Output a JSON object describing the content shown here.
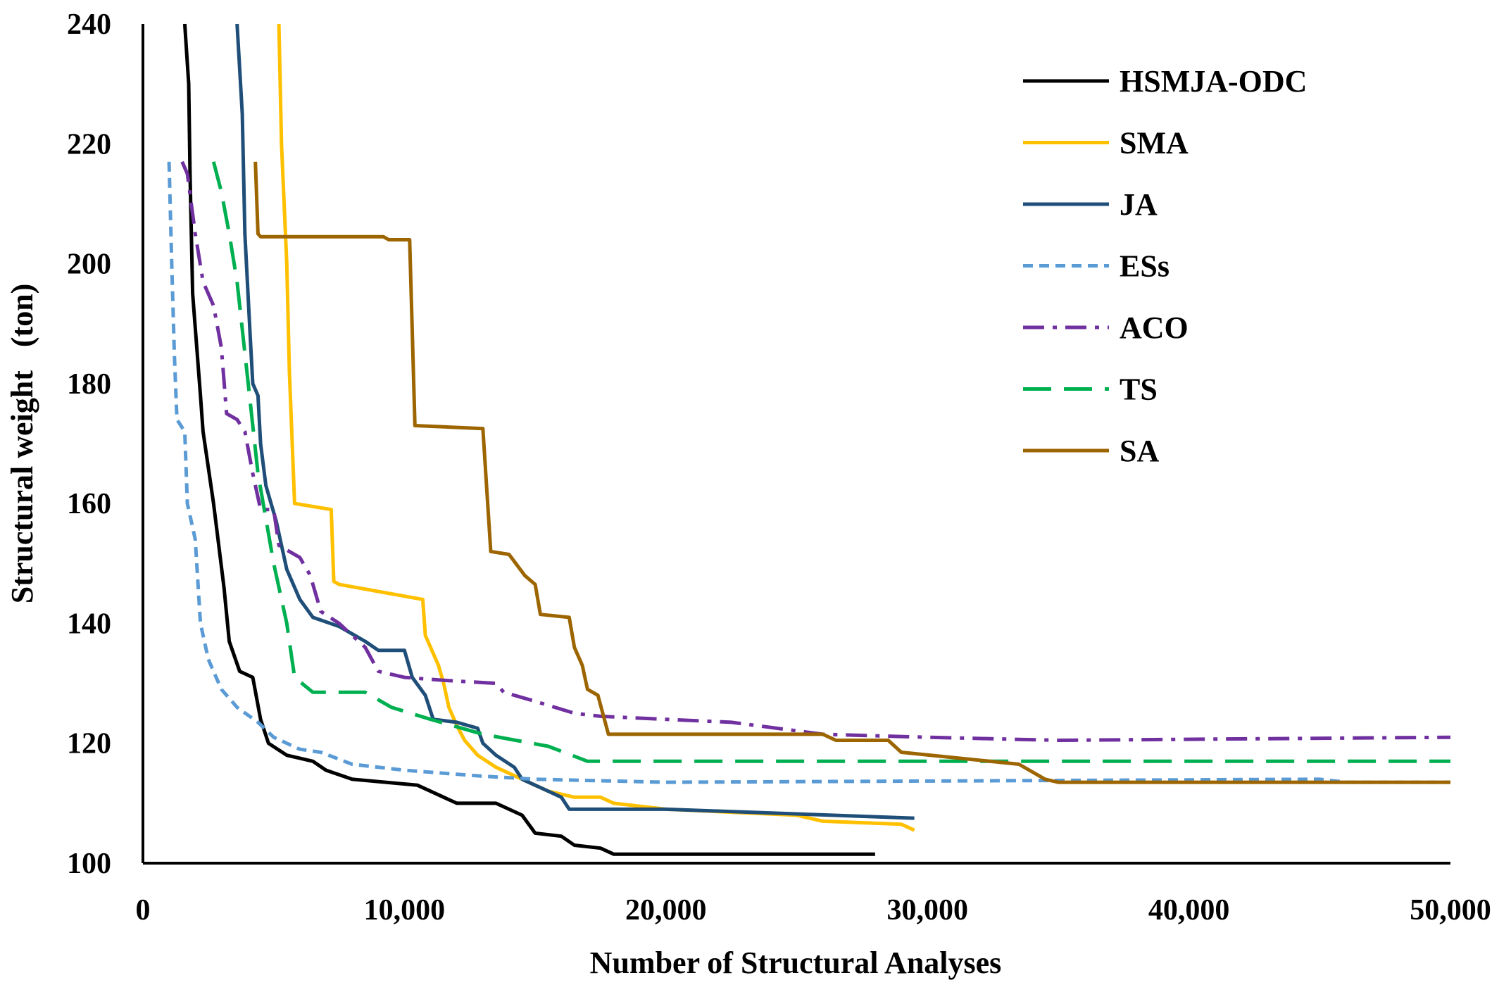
{
  "chart_data": {
    "type": "line",
    "title": "",
    "xlabel": "Number of Structural Analyses",
    "ylabel": "Structural weight   (ton)",
    "xlim": [
      0,
      50000
    ],
    "ylim": [
      100,
      240
    ],
    "xticks": [
      0,
      10000,
      20000,
      30000,
      40000,
      50000
    ],
    "xtick_labels": [
      "0",
      "10,000",
      "20,000",
      "30,000",
      "40,000",
      "50,000"
    ],
    "yticks": [
      100,
      120,
      140,
      160,
      180,
      200,
      220,
      240
    ],
    "ytick_labels": [
      "100",
      "120",
      "140",
      "160",
      "180",
      "200",
      "220",
      "240"
    ],
    "grid": false,
    "legend_position": "top-right",
    "series": [
      {
        "name": "HSMJA-ODC",
        "color": "#000000",
        "dash": "solid",
        "points": [
          [
            1600,
            240
          ],
          [
            1750,
            230
          ],
          [
            1800,
            215
          ],
          [
            1900,
            195
          ],
          [
            2200,
            178
          ],
          [
            2300,
            172
          ],
          [
            2700,
            160
          ],
          [
            3100,
            146
          ],
          [
            3300,
            137
          ],
          [
            3700,
            132
          ],
          [
            4200,
            131
          ],
          [
            4500,
            124
          ],
          [
            4800,
            120
          ],
          [
            5500,
            118
          ],
          [
            6500,
            117
          ],
          [
            7000,
            115.5
          ],
          [
            8000,
            114
          ],
          [
            10500,
            113
          ],
          [
            11000,
            112
          ],
          [
            12000,
            110
          ],
          [
            13500,
            110
          ],
          [
            14500,
            108
          ],
          [
            15000,
            105
          ],
          [
            16000,
            104.5
          ],
          [
            16500,
            103
          ],
          [
            17500,
            102.5
          ],
          [
            18000,
            101.5
          ],
          [
            28000,
            101.5
          ]
        ]
      },
      {
        "name": "SMA",
        "color": "#FFC000",
        "dash": "solid",
        "points": [
          [
            5200,
            240
          ],
          [
            5300,
            220
          ],
          [
            5500,
            200
          ],
          [
            5600,
            182
          ],
          [
            5800,
            160
          ],
          [
            7200,
            159
          ],
          [
            7300,
            147
          ],
          [
            7500,
            146.5
          ],
          [
            10700,
            144
          ],
          [
            10800,
            138
          ],
          [
            11300,
            133
          ],
          [
            11500,
            130
          ],
          [
            11700,
            126
          ],
          [
            12000,
            123
          ],
          [
            12300,
            120.5
          ],
          [
            12800,
            118
          ],
          [
            13500,
            116
          ],
          [
            15500,
            112
          ],
          [
            16500,
            111
          ],
          [
            17500,
            111
          ],
          [
            18000,
            110
          ],
          [
            20000,
            109
          ],
          [
            25000,
            108
          ],
          [
            26000,
            107
          ],
          [
            29000,
            106.5
          ],
          [
            29500,
            105.5
          ]
        ]
      },
      {
        "name": "JA",
        "color": "#1F4E79",
        "dash": "solid",
        "points": [
          [
            3600,
            240
          ],
          [
            3800,
            225
          ],
          [
            3900,
            205
          ],
          [
            4100,
            188
          ],
          [
            4200,
            180
          ],
          [
            4400,
            178
          ],
          [
            4500,
            170
          ],
          [
            4700,
            163
          ],
          [
            5100,
            157
          ],
          [
            5200,
            155
          ],
          [
            5500,
            149
          ],
          [
            6000,
            144
          ],
          [
            6500,
            141
          ],
          [
            7500,
            139.5
          ],
          [
            8500,
            137
          ],
          [
            9000,
            135.5
          ],
          [
            10000,
            135.5
          ],
          [
            10300,
            131
          ],
          [
            10800,
            128
          ],
          [
            11100,
            124
          ],
          [
            12000,
            123.5
          ],
          [
            12800,
            122.5
          ],
          [
            13000,
            120
          ],
          [
            13500,
            118
          ],
          [
            14200,
            116
          ],
          [
            14500,
            114
          ],
          [
            15000,
            113
          ],
          [
            16000,
            111
          ],
          [
            16300,
            109
          ],
          [
            20000,
            109
          ],
          [
            29500,
            107.5
          ]
        ]
      },
      {
        "name": "ESs",
        "color": "#5B9BD5",
        "dash": "short-dash",
        "points": [
          [
            1000,
            217
          ],
          [
            1100,
            200
          ],
          [
            1200,
            185
          ],
          [
            1300,
            174
          ],
          [
            1600,
            172
          ],
          [
            1700,
            160
          ],
          [
            2000,
            154
          ],
          [
            2200,
            140
          ],
          [
            2500,
            134
          ],
          [
            3000,
            129
          ],
          [
            3600,
            126
          ],
          [
            4400,
            123.5
          ],
          [
            5000,
            121
          ],
          [
            6000,
            119
          ],
          [
            6800,
            118.5
          ],
          [
            8000,
            116.5
          ],
          [
            10000,
            115.5
          ],
          [
            13000,
            114.5
          ],
          [
            15000,
            114
          ],
          [
            20000,
            113.5
          ],
          [
            45000,
            114
          ],
          [
            46000,
            113.5
          ],
          [
            50000,
            113.5
          ]
        ]
      },
      {
        "name": "ACO",
        "color": "#7030A0",
        "dash": "dash-dot",
        "points": [
          [
            1500,
            217
          ],
          [
            1700,
            215
          ],
          [
            2000,
            205
          ],
          [
            2300,
            197
          ],
          [
            2700,
            193
          ],
          [
            3000,
            186
          ],
          [
            3200,
            175
          ],
          [
            3600,
            174
          ],
          [
            3900,
            172
          ],
          [
            4200,
            165
          ],
          [
            4500,
            159
          ],
          [
            5000,
            159
          ],
          [
            5200,
            153
          ],
          [
            6000,
            151
          ],
          [
            6400,
            148
          ],
          [
            6800,
            142
          ],
          [
            7500,
            140
          ],
          [
            8500,
            136
          ],
          [
            9000,
            132
          ],
          [
            10000,
            131
          ],
          [
            11500,
            130.5
          ],
          [
            13500,
            130
          ],
          [
            13800,
            128.5
          ],
          [
            15000,
            127
          ],
          [
            16500,
            125
          ],
          [
            17500,
            124.5
          ],
          [
            20000,
            124
          ],
          [
            22500,
            123.5
          ],
          [
            26000,
            121.5
          ],
          [
            30000,
            121
          ],
          [
            35000,
            120.5
          ],
          [
            50000,
            121
          ]
        ]
      },
      {
        "name": "TS",
        "color": "#00B050",
        "dash": "long-dash",
        "points": [
          [
            2700,
            217
          ],
          [
            3000,
            212
          ],
          [
            3300,
            205
          ],
          [
            3600,
            197
          ],
          [
            4000,
            181
          ],
          [
            4400,
            165
          ],
          [
            5000,
            150
          ],
          [
            5500,
            140
          ],
          [
            5800,
            131
          ],
          [
            6500,
            128.5
          ],
          [
            8500,
            128.5
          ],
          [
            9500,
            126
          ],
          [
            11000,
            124
          ],
          [
            13000,
            121.5
          ],
          [
            15500,
            119.5
          ],
          [
            17000,
            117
          ],
          [
            20000,
            117
          ],
          [
            50000,
            117
          ]
        ]
      },
      {
        "name": "SA",
        "color": "#9C6500",
        "dash": "solid",
        "points": [
          [
            4300,
            217
          ],
          [
            4400,
            205
          ],
          [
            4500,
            204.5
          ],
          [
            9200,
            204.5
          ],
          [
            9400,
            204
          ],
          [
            10200,
            204
          ],
          [
            10400,
            173
          ],
          [
            13000,
            172.5
          ],
          [
            13300,
            152
          ],
          [
            14000,
            151.5
          ],
          [
            14600,
            148
          ],
          [
            15000,
            146.5
          ],
          [
            15200,
            141.5
          ],
          [
            16300,
            141
          ],
          [
            16500,
            136
          ],
          [
            16800,
            133
          ],
          [
            17000,
            129
          ],
          [
            17400,
            128
          ],
          [
            17800,
            121.5
          ],
          [
            26000,
            121.5
          ],
          [
            26500,
            120.5
          ],
          [
            28500,
            120.5
          ],
          [
            29000,
            118.5
          ],
          [
            33500,
            116.5
          ],
          [
            34500,
            114
          ],
          [
            35000,
            113.5
          ],
          [
            50000,
            113.5
          ]
        ]
      }
    ]
  }
}
